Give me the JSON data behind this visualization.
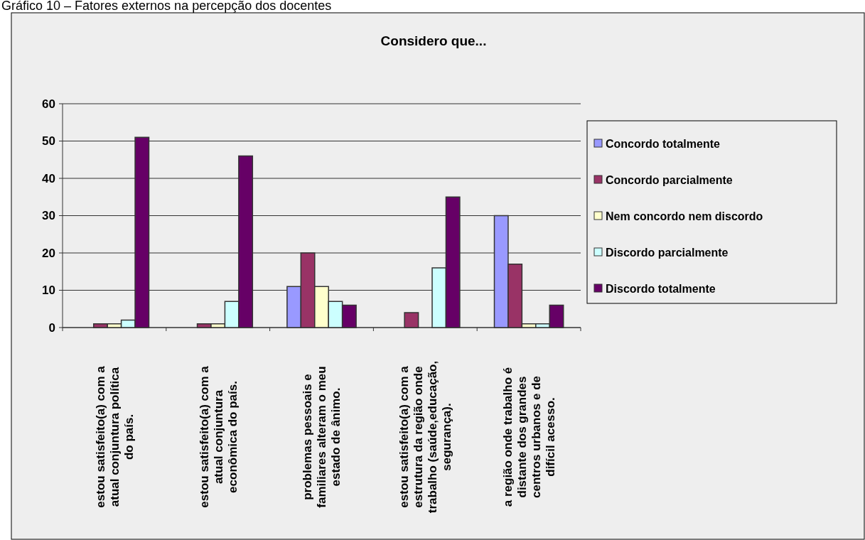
{
  "chart_data": {
    "type": "bar",
    "title": "Considero que...",
    "annotations": [
      "Gráfico 10 – Fatores externos na percepção dos docentes"
    ],
    "categories": [
      "estou satisfeito(a) com a atual conjuntura política do país.",
      "estou satisfeito(a) com a atual conjuntura econômica do país.",
      "problemas pessoais e familiares alteram o meu estado de ânimo.",
      "estou satisfeito(a) com a estrutura da região onde trabalho (saúde,educação, segurança).",
      "a região onde trabalho é distante dos grandes centros urbanos e de difícil acesso."
    ],
    "series": [
      {
        "name": "Concordo totalmente",
        "color": "#9999ff",
        "values": [
          0,
          0,
          11,
          0,
          30
        ]
      },
      {
        "name": "Concordo parcialmente",
        "color": "#993366",
        "values": [
          1,
          1,
          20,
          4,
          17
        ]
      },
      {
        "name": "Nem concordo nem discordo",
        "color": "#ffffcc",
        "values": [
          1,
          1,
          11,
          0,
          1
        ]
      },
      {
        "name": "Discordo parcialmente",
        "color": "#ccffff",
        "values": [
          2,
          7,
          7,
          16,
          1
        ]
      },
      {
        "name": "Discordo totalmente",
        "color": "#660066",
        "values": [
          51,
          46,
          6,
          35,
          6
        ]
      }
    ],
    "ylim": [
      0,
      60
    ],
    "yticks": [
      0,
      10,
      20,
      30,
      40,
      50,
      60
    ],
    "grid": "y",
    "legend": "right"
  }
}
